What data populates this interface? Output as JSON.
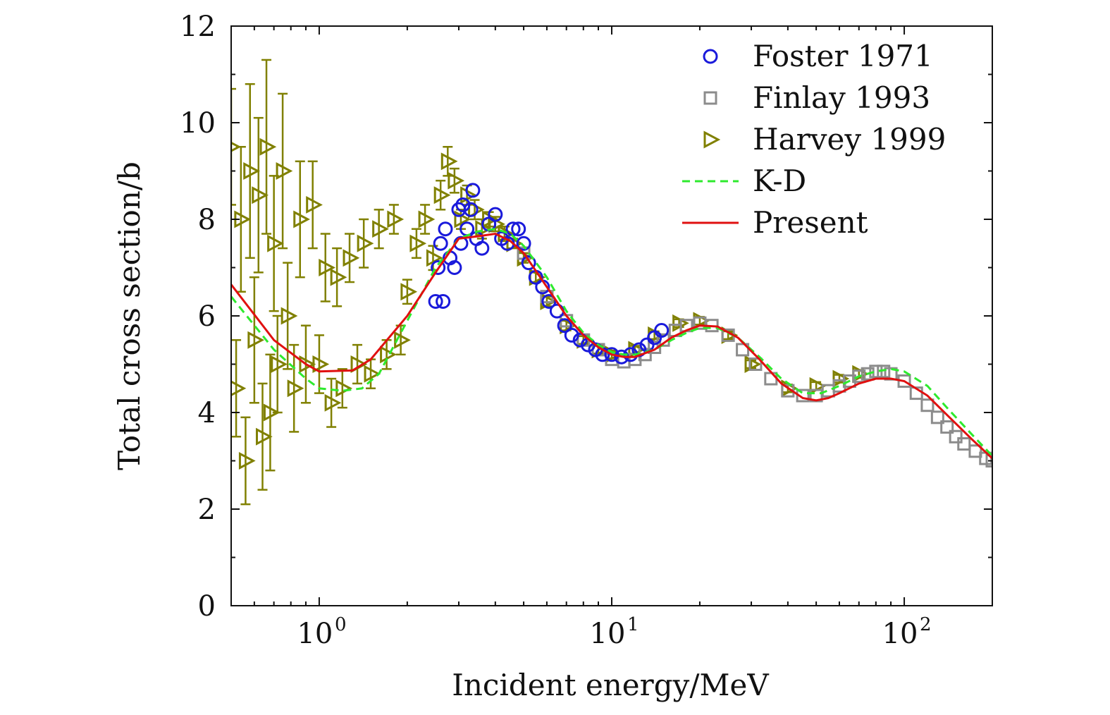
{
  "chart_data": {
    "type": "scatter",
    "title": "",
    "xlabel": "Incident energy/MeV",
    "ylabel": "Total cross section/b",
    "xscale": "log",
    "xlim": [
      0.5,
      200
    ],
    "ylim": [
      0,
      12
    ],
    "x_tick_labels": [
      {
        "value": 1,
        "base": "10",
        "exp": "0"
      },
      {
        "value": 10,
        "base": "10",
        "exp": "1"
      },
      {
        "value": 100,
        "base": "10",
        "exp": "2"
      }
    ],
    "y_ticks": [
      0,
      2,
      4,
      6,
      8,
      10,
      12
    ],
    "y_tick_labels": [
      "0",
      "2",
      "4",
      "6",
      "8",
      "10",
      "12"
    ],
    "grid": false,
    "legend_position": "top-right",
    "series": [
      {
        "name": "Foster 1971",
        "kind": "scatter",
        "marker": "circle",
        "color": "#1a1adb",
        "x": [
          2.5,
          2.55,
          2.6,
          2.65,
          2.7,
          2.8,
          2.9,
          3.0,
          3.05,
          3.1,
          3.2,
          3.3,
          3.35,
          3.45,
          3.6,
          3.8,
          4.0,
          4.2,
          4.4,
          4.6,
          4.8,
          5.0,
          5.2,
          5.5,
          5.8,
          6.1,
          6.5,
          6.9,
          7.3,
          7.8,
          8.3,
          8.8,
          9.3,
          10.0,
          10.8,
          11.6,
          12.4,
          13.2,
          14.0,
          14.8
        ],
        "y": [
          6.3,
          7.0,
          7.5,
          6.3,
          7.8,
          7.2,
          7.0,
          8.2,
          7.5,
          8.3,
          7.8,
          8.2,
          8.6,
          7.6,
          7.4,
          7.9,
          8.1,
          7.6,
          7.5,
          7.8,
          7.8,
          7.5,
          7.1,
          6.8,
          6.6,
          6.3,
          6.1,
          5.8,
          5.6,
          5.5,
          5.4,
          5.3,
          5.2,
          5.2,
          5.15,
          5.2,
          5.3,
          5.4,
          5.55,
          5.7
        ]
      },
      {
        "name": "Finlay 1993",
        "kind": "scatter",
        "marker": "square",
        "color": "#8c8c8c",
        "x": [
          5.0,
          6.0,
          7.0,
          8.0,
          9.0,
          10.0,
          11.0,
          12.0,
          13.0,
          14.0,
          15.0,
          16.5,
          18.0,
          20.0,
          22.0,
          25.0,
          28.0,
          31.0,
          35.0,
          40.0,
          45.0,
          50.0,
          55.0,
          60.0,
          65.0,
          70.0,
          75.0,
          80.0,
          85.0,
          90.0,
          100.0,
          110.0,
          120.0,
          130.0,
          140.0,
          150.0,
          160.0,
          175.0,
          190.0,
          200.0
        ],
        "y": [
          7.3,
          6.4,
          5.9,
          5.5,
          5.3,
          5.1,
          5.05,
          5.1,
          5.2,
          5.35,
          5.5,
          5.7,
          5.8,
          5.85,
          5.8,
          5.6,
          5.3,
          5.0,
          4.7,
          4.45,
          4.35,
          4.35,
          4.45,
          4.55,
          4.65,
          4.75,
          4.8,
          4.85,
          4.85,
          4.8,
          4.65,
          4.4,
          4.15,
          3.9,
          3.7,
          3.5,
          3.35,
          3.2,
          3.05,
          3.0
        ]
      },
      {
        "name": "Harvey 1999",
        "kind": "scatter",
        "marker": "triangle-right",
        "color": "#808000",
        "x": [
          0.5,
          0.52,
          0.54,
          0.56,
          0.58,
          0.6,
          0.62,
          0.64,
          0.66,
          0.68,
          0.7,
          0.72,
          0.75,
          0.78,
          0.82,
          0.86,
          0.9,
          0.95,
          1.0,
          1.05,
          1.1,
          1.15,
          1.2,
          1.27,
          1.35,
          1.42,
          1.5,
          1.6,
          1.7,
          1.8,
          1.9,
          2.0,
          2.15,
          2.3,
          2.45,
          2.6,
          2.75,
          2.9,
          3.05,
          3.2,
          3.4,
          3.6,
          3.8,
          4.0,
          4.3,
          4.6,
          5.0,
          5.5,
          6.0,
          7.0,
          8.0,
          9.0,
          10.0,
          12.0,
          14.0,
          17.0,
          20.0,
          25.0,
          30.0,
          40.0,
          50.0,
          60.0,
          70.0
        ],
        "y": [
          9.5,
          4.5,
          8.0,
          3.0,
          9.0,
          5.5,
          8.5,
          3.5,
          9.5,
          4.0,
          7.5,
          5.0,
          9.0,
          6.0,
          4.5,
          8.0,
          5.0,
          8.3,
          5.0,
          7.0,
          4.2,
          6.8,
          4.5,
          7.2,
          5.0,
          7.5,
          4.8,
          7.8,
          5.2,
          8.0,
          5.5,
          6.5,
          7.5,
          8.0,
          7.2,
          8.5,
          9.2,
          8.8,
          8.0,
          8.5,
          8.2,
          7.8,
          8.0,
          7.9,
          7.7,
          7.5,
          7.2,
          6.8,
          6.3,
          5.8,
          5.5,
          5.3,
          5.2,
          5.3,
          5.6,
          5.85,
          5.9,
          5.6,
          5.0,
          4.5,
          4.55,
          4.7,
          4.8
        ],
        "yerr": [
          1.2,
          1.0,
          1.5,
          0.9,
          1.8,
          1.3,
          1.6,
          1.1,
          1.8,
          1.2,
          1.4,
          1.0,
          1.6,
          1.1,
          0.9,
          1.2,
          0.8,
          0.9,
          0.6,
          0.7,
          0.5,
          0.6,
          0.4,
          0.5,
          0.4,
          0.5,
          0.3,
          0.4,
          0.3,
          0.3,
          0.3,
          0.25,
          0.3,
          0.3,
          0.25,
          0.3,
          0.3,
          0.25,
          0.2,
          0.2,
          0.2,
          0.2,
          0.15,
          0.15,
          0.15,
          0.1,
          0.1,
          0.1,
          0.1,
          0.1,
          0.08,
          0.08,
          0.08,
          0.08,
          0.08,
          0.08,
          0.08,
          0.08,
          0.08,
          0.08,
          0.08,
          0.08,
          0.08
        ]
      },
      {
        "name": "K-D",
        "kind": "line",
        "dash": "dashed",
        "color": "#2eea2e",
        "x": [
          0.5,
          0.7,
          0.9,
          1.0,
          1.2,
          1.4,
          1.6,
          2.0,
          2.5,
          3.0,
          3.5,
          4.0,
          4.5,
          5.0,
          6.0,
          7.0,
          8.0,
          9.0,
          10.0,
          11.0,
          12.0,
          14.0,
          16.0,
          18.0,
          20.0,
          23.0,
          27.0,
          32.0,
          38.0,
          45.0,
          52.0,
          60.0,
          70.0,
          80.0,
          90.0,
          100.0,
          120.0,
          140.0,
          170.0,
          200.0
        ],
        "y": [
          6.4,
          5.3,
          4.7,
          4.5,
          4.45,
          4.5,
          4.8,
          5.9,
          7.0,
          7.6,
          7.75,
          7.8,
          7.7,
          7.45,
          6.8,
          6.1,
          5.65,
          5.4,
          5.25,
          5.2,
          5.2,
          5.3,
          5.5,
          5.65,
          5.75,
          5.75,
          5.55,
          5.15,
          4.7,
          4.4,
          4.4,
          4.55,
          4.75,
          4.85,
          4.9,
          4.85,
          4.55,
          4.1,
          3.55,
          3.1
        ]
      },
      {
        "name": "Present",
        "kind": "line",
        "dash": "solid",
        "color": "#e01010",
        "x": [
          0.5,
          0.7,
          0.9,
          1.0,
          1.3,
          1.5,
          2.0,
          2.5,
          3.0,
          3.5,
          4.0,
          4.5,
          5.0,
          6.0,
          7.0,
          8.0,
          9.0,
          10.0,
          11.0,
          12.0,
          14.0,
          16.0,
          18.0,
          20.0,
          23.0,
          27.0,
          32.0,
          38.0,
          45.0,
          50.0,
          55.0,
          60.0,
          70.0,
          80.0,
          90.0,
          100.0,
          120.0,
          140.0,
          170.0,
          200.0
        ],
        "y": [
          6.65,
          5.5,
          5.0,
          4.85,
          4.87,
          5.1,
          6.0,
          6.9,
          7.6,
          7.65,
          7.7,
          7.55,
          7.3,
          6.6,
          6.0,
          5.6,
          5.35,
          5.2,
          5.15,
          5.15,
          5.3,
          5.55,
          5.7,
          5.8,
          5.78,
          5.55,
          5.1,
          4.6,
          4.3,
          4.25,
          4.3,
          4.4,
          4.6,
          4.7,
          4.7,
          4.65,
          4.35,
          3.95,
          3.45,
          3.05
        ]
      }
    ]
  }
}
